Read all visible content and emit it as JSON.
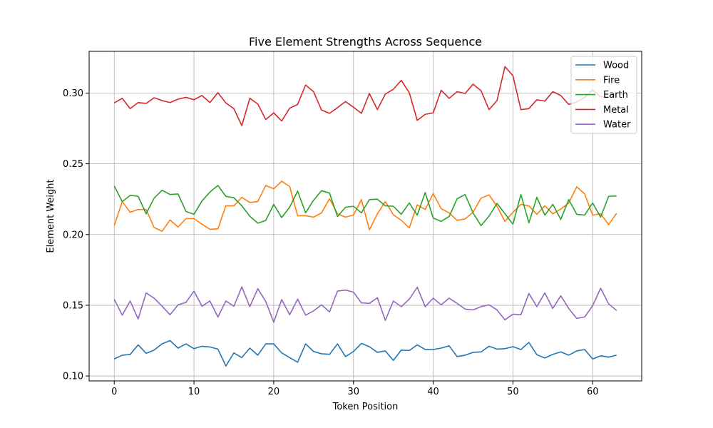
{
  "chart_data": {
    "type": "line",
    "title": "Five Element Strengths Across Sequence",
    "xlabel": "Token Position",
    "ylabel": "Element Weight",
    "xlim": [
      -3.15,
      66.15
    ],
    "ylim": [
      0.0965,
      0.3295
    ],
    "xticks": [
      0,
      10,
      20,
      30,
      40,
      50,
      60
    ],
    "yticks": [
      0.1,
      0.15,
      0.2,
      0.25,
      0.3
    ],
    "ytick_labels": [
      "0.10",
      "0.15",
      "0.20",
      "0.25",
      "0.30"
    ],
    "grid": true,
    "legend_position": "top-right",
    "x": [
      0,
      1,
      2,
      3,
      4,
      5,
      6,
      7,
      8,
      9,
      10,
      11,
      12,
      13,
      14,
      15,
      16,
      17,
      18,
      19,
      20,
      21,
      22,
      23,
      24,
      25,
      26,
      27,
      28,
      29,
      30,
      31,
      32,
      33,
      34,
      35,
      36,
      37,
      38,
      39,
      40,
      41,
      42,
      43,
      44,
      45,
      46,
      47,
      48,
      49,
      50,
      51,
      52,
      53,
      54,
      55,
      56,
      57,
      58,
      59,
      60,
      61,
      62,
      63
    ],
    "series": [
      {
        "name": "Wood",
        "color": "#1f77b4",
        "values": [
          0.112,
          0.1147,
          0.1152,
          0.122,
          0.116,
          0.1183,
          0.1227,
          0.125,
          0.1197,
          0.1227,
          0.1193,
          0.121,
          0.1205,
          0.119,
          0.107,
          0.1163,
          0.113,
          0.1197,
          0.1147,
          0.1227,
          0.1227,
          0.1163,
          0.113,
          0.1097,
          0.1227,
          0.1173,
          0.1157,
          0.1153,
          0.1227,
          0.1137,
          0.1173,
          0.123,
          0.1207,
          0.1167,
          0.1177,
          0.111,
          0.1183,
          0.118,
          0.122,
          0.1187,
          0.1187,
          0.1197,
          0.1213,
          0.1137,
          0.1147,
          0.1167,
          0.117,
          0.121,
          0.119,
          0.1193,
          0.1207,
          0.1187,
          0.1237,
          0.115,
          0.1127,
          0.1153,
          0.117,
          0.1147,
          0.1177,
          0.1187,
          0.112,
          0.1143,
          0.1133,
          0.1147
        ]
      },
      {
        "name": "Fire",
        "color": "#ff7f0e",
        "values": [
          0.2063,
          0.2233,
          0.2157,
          0.2177,
          0.2177,
          0.205,
          0.2023,
          0.2103,
          0.2053,
          0.2113,
          0.2113,
          0.2073,
          0.2037,
          0.204,
          0.2203,
          0.2203,
          0.2263,
          0.2227,
          0.2233,
          0.2347,
          0.2323,
          0.2377,
          0.234,
          0.2133,
          0.2133,
          0.2123,
          0.2153,
          0.2253,
          0.2147,
          0.2123,
          0.2137,
          0.2247,
          0.2033,
          0.2147,
          0.2233,
          0.214,
          0.21,
          0.2047,
          0.221,
          0.2177,
          0.229,
          0.2183,
          0.2153,
          0.21,
          0.211,
          0.2157,
          0.2257,
          0.228,
          0.22,
          0.2093,
          0.2157,
          0.2213,
          0.2203,
          0.2143,
          0.2203,
          0.2147,
          0.218,
          0.2223,
          0.2337,
          0.2287,
          0.2137,
          0.2147,
          0.207,
          0.215
        ]
      },
      {
        "name": "Earth",
        "color": "#2ca02c",
        "values": [
          0.2343,
          0.2233,
          0.2277,
          0.227,
          0.2147,
          0.2257,
          0.2313,
          0.2283,
          0.2287,
          0.2163,
          0.2143,
          0.2237,
          0.23,
          0.2347,
          0.227,
          0.226,
          0.2203,
          0.213,
          0.208,
          0.21,
          0.2213,
          0.212,
          0.2193,
          0.2307,
          0.2153,
          0.2243,
          0.231,
          0.2293,
          0.2127,
          0.2193,
          0.22,
          0.2153,
          0.2247,
          0.225,
          0.2203,
          0.22,
          0.2143,
          0.2223,
          0.2137,
          0.2297,
          0.2117,
          0.2093,
          0.2127,
          0.2253,
          0.2283,
          0.2153,
          0.2063,
          0.213,
          0.222,
          0.2147,
          0.2073,
          0.2283,
          0.2083,
          0.2263,
          0.2137,
          0.2213,
          0.2107,
          0.2247,
          0.2143,
          0.2137,
          0.2223,
          0.2123,
          0.227,
          0.2273
        ]
      },
      {
        "name": "Metal",
        "color": "#d62728",
        "values": [
          0.293,
          0.2963,
          0.289,
          0.2933,
          0.2927,
          0.2967,
          0.2947,
          0.2933,
          0.2957,
          0.297,
          0.2953,
          0.2983,
          0.2933,
          0.3003,
          0.293,
          0.289,
          0.277,
          0.2963,
          0.2923,
          0.2813,
          0.286,
          0.2803,
          0.2893,
          0.292,
          0.3057,
          0.301,
          0.288,
          0.2857,
          0.2897,
          0.294,
          0.29,
          0.2857,
          0.2997,
          0.2883,
          0.2993,
          0.3027,
          0.309,
          0.3003,
          0.2807,
          0.285,
          0.286,
          0.302,
          0.2963,
          0.301,
          0.2997,
          0.3063,
          0.3017,
          0.2883,
          0.2947,
          0.3187,
          0.3123,
          0.2883,
          0.289,
          0.2953,
          0.2943,
          0.301,
          0.2983,
          0.292,
          0.2937,
          0.297,
          0.3023,
          0.2973,
          0.2977,
          0.2987
        ]
      },
      {
        "name": "Water",
        "color": "#9467bd",
        "values": [
          0.1543,
          0.143,
          0.153,
          0.1403,
          0.1587,
          0.155,
          0.1493,
          0.1433,
          0.1503,
          0.152,
          0.16,
          0.1493,
          0.153,
          0.1417,
          0.153,
          0.1493,
          0.163,
          0.149,
          0.1617,
          0.1527,
          0.138,
          0.154,
          0.1433,
          0.1543,
          0.143,
          0.146,
          0.1503,
          0.1453,
          0.16,
          0.1607,
          0.1593,
          0.1517,
          0.1513,
          0.1553,
          0.1393,
          0.153,
          0.149,
          0.1543,
          0.1627,
          0.149,
          0.155,
          0.1503,
          0.155,
          0.1513,
          0.1473,
          0.1467,
          0.149,
          0.1503,
          0.1467,
          0.1397,
          0.1437,
          0.1433,
          0.1583,
          0.149,
          0.1587,
          0.1477,
          0.1567,
          0.1477,
          0.1407,
          0.1417,
          0.1497,
          0.162,
          0.151,
          0.1463
        ]
      }
    ]
  }
}
